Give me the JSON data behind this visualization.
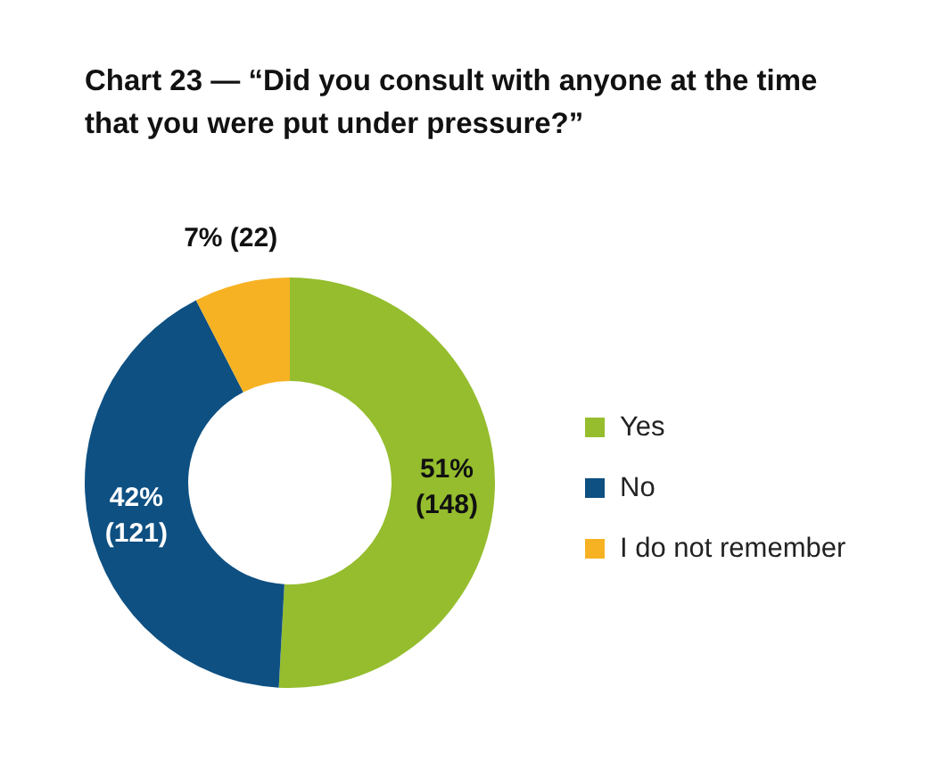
{
  "chart_data": {
    "type": "donut",
    "title": "Chart 23 — “Did you consult with anyone at the time that you were put under pressure?”",
    "categories": [
      "Yes",
      "No",
      "I do not remember"
    ],
    "values": [
      148,
      121,
      22
    ],
    "colors": [
      "#95bd2e",
      "#0e5082",
      "#f6b223"
    ],
    "value_labels": [
      "51% (148)",
      "42% (121)",
      "7% (22)"
    ],
    "legend": "right"
  }
}
